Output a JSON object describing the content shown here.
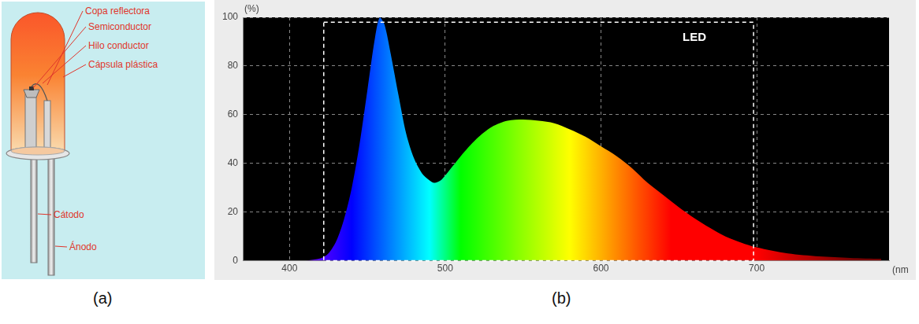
{
  "diagram": {
    "panel": "(a)",
    "labels": [
      "Copa reflectora",
      "Semiconductor",
      "Hilo conductor",
      "Cápsula plástica",
      "Cátodo",
      "Ánodo"
    ]
  },
  "chart_panel": "(b)",
  "chart_data": {
    "type": "area",
    "color": "spectrum",
    "x_label": "(nm",
    "y_label": "(%)",
    "annotations": [
      {
        "text": "LED"
      }
    ],
    "box": {
      "x": [
        422,
        698
      ],
      "y": [
        0,
        98
      ]
    },
    "x": [
      410,
      420,
      425,
      430,
      435,
      440,
      445,
      450,
      455,
      458,
      461,
      465,
      470,
      475,
      480,
      485,
      490,
      493,
      497,
      500,
      505,
      510,
      520,
      530,
      540,
      550,
      560,
      570,
      580,
      590,
      600,
      610,
      620,
      630,
      640,
      650,
      660,
      670,
      680,
      690,
      700,
      720,
      740,
      760,
      780
    ],
    "values": [
      0,
      1,
      3,
      8,
      17,
      30,
      48,
      70,
      92,
      100,
      97,
      85,
      68,
      52,
      42,
      36,
      33,
      32,
      33,
      35,
      39,
      43,
      50,
      55,
      57.5,
      58,
      57.5,
      56.5,
      54,
      51,
      47,
      43,
      38,
      32,
      27,
      22,
      17.5,
      13.5,
      10,
      7.5,
      5.5,
      3,
      1.8,
      1.2,
      0.8
    ],
    "xlim": [
      370,
      785
    ],
    "ylim": [
      0,
      100
    ],
    "xticks": [
      400,
      500,
      600,
      700
    ],
    "yticks": [
      0,
      20,
      40,
      60,
      80,
      100
    ],
    "grid": true
  }
}
